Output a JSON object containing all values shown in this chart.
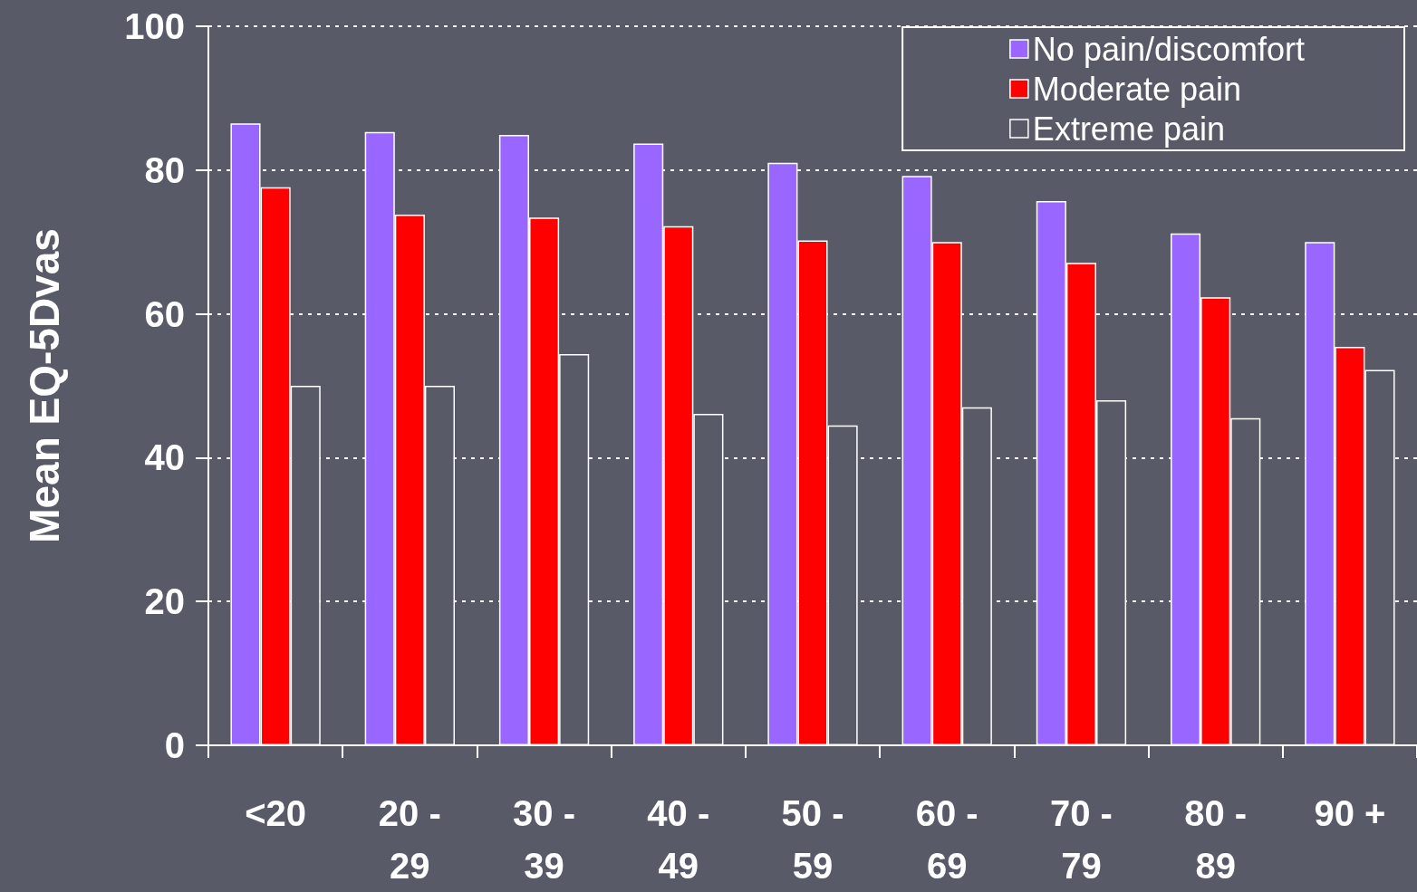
{
  "chart_data": {
    "type": "bar",
    "ylabel": "Mean EQ-5Dvas",
    "categories": [
      "<20",
      "20 -\n29",
      "30 -\n39",
      "40 -\n49",
      "50 -\n59",
      "60 -\n69",
      "70 -\n79",
      "80 -\n89",
      "90 +"
    ],
    "series": [
      {
        "name": "No pain/discomfort",
        "color": "#9966ff",
        "values": [
          86.5,
          85.3,
          84.9,
          83.7,
          81.0,
          79.2,
          75.7,
          71.2,
          70.0
        ]
      },
      {
        "name": "Moderate pain",
        "color": "#ff0000",
        "values": [
          77.6,
          73.8,
          73.4,
          72.2,
          70.2,
          70.0,
          67.1,
          62.3,
          55.4
        ]
      },
      {
        "name": "Extreme pain",
        "color": "#585a68",
        "values": [
          50.0,
          50.0,
          54.4,
          46.1,
          44.5,
          47.0,
          48.0,
          45.5,
          52.2
        ]
      }
    ],
    "ylim": [
      0,
      100
    ],
    "yticks": [
      0,
      20,
      40,
      60,
      80,
      100
    ],
    "grid": "y",
    "legend": "top right"
  }
}
